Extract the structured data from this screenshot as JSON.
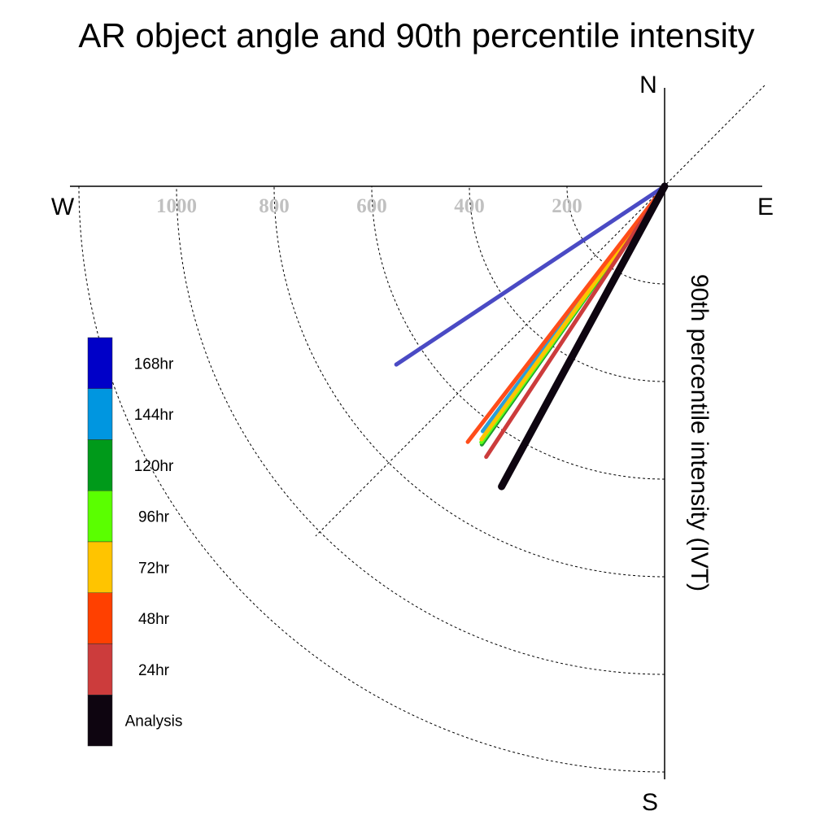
{
  "chart_data": {
    "type": "polar-vector",
    "title": "AR object angle and 90th percentile intensity",
    "ylabel": "90th percentile intensity (IVT)",
    "compass": {
      "north": "N",
      "south": "S",
      "east": "E",
      "west": "W"
    },
    "rings": [
      200,
      400,
      600,
      800,
      1000,
      1200
    ],
    "ring_labels": [
      "200",
      "400",
      "600",
      "800",
      "1000"
    ],
    "rlim": [
      0,
      1200
    ],
    "angle_convention": "degrees clockwise from north",
    "series": [
      {
        "name": "168hr",
        "angle_deg": 236.4,
        "intensity": 660,
        "color": "#4a4ac4",
        "legend_color": "#0000c8"
      },
      {
        "name": "144hr",
        "angle_deg": 216.6,
        "intensity": 625,
        "color": "#2a9ed8",
        "legend_color": "#0096e0"
      },
      {
        "name": "120hr",
        "angle_deg": 215.3,
        "intensity": 648,
        "color": "#1f9a2c",
        "legend_color": "#009a1a"
      },
      {
        "name": "96hr",
        "angle_deg": 215.6,
        "intensity": 645,
        "color": "#5cff1a",
        "legend_color": "#5aff00"
      },
      {
        "name": "72hr",
        "angle_deg": 215.9,
        "intensity": 640,
        "color": "#ffc400",
        "legend_color": "#ffc400"
      },
      {
        "name": "48hr",
        "angle_deg": 217.6,
        "intensity": 661,
        "color": "#ff4d1a",
        "legend_color": "#ff4000"
      },
      {
        "name": "24hr",
        "angle_deg": 213.4,
        "intensity": 664,
        "color": "#cc3c3c",
        "legend_color": "#cc3c3c"
      },
      {
        "name": "Analysis",
        "angle_deg": 208.5,
        "intensity": 700,
        "color": "#0e0510",
        "legend_color": "#0e0510"
      }
    ],
    "legend_placement": "lower-left"
  }
}
